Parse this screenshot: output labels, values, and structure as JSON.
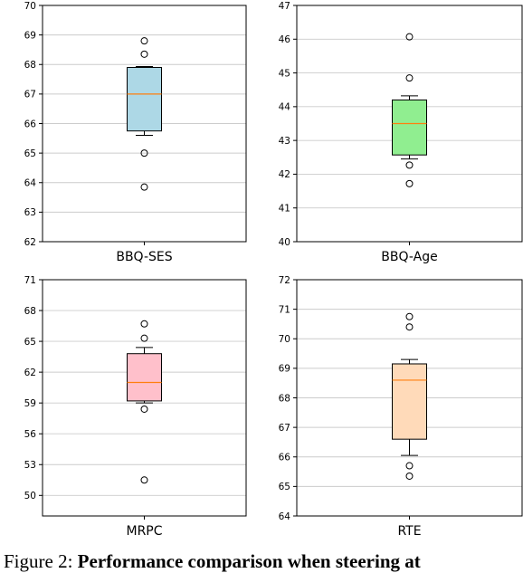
{
  "caption": {
    "lead": "Figure 2:",
    "bold": "Performance comparison when steering at"
  },
  "colors": {
    "grid": "#cccccc",
    "median": "#ff7f0e",
    "axes": "#000000"
  },
  "chart_data": [
    {
      "type": "box",
      "xlabel": "BBQ-SES",
      "ylim": [
        62,
        70
      ],
      "yticks": [
        62,
        63,
        64,
        65,
        66,
        67,
        68,
        69,
        70
      ],
      "grid": true,
      "box": {
        "q1": 65.75,
        "median": 67.0,
        "q3": 67.9,
        "whisker_low": 65.6,
        "whisker_high": 67.93
      },
      "outliers": [
        68.8,
        68.35,
        65.0,
        63.85
      ],
      "fill": "#add8e6"
    },
    {
      "type": "box",
      "xlabel": "BBQ-Age",
      "ylim": [
        40,
        47
      ],
      "yticks": [
        40,
        41,
        42,
        43,
        44,
        45,
        46,
        47
      ],
      "grid": true,
      "box": {
        "q1": 42.57,
        "median": 43.5,
        "q3": 44.2,
        "whisker_low": 42.45,
        "whisker_high": 44.32
      },
      "outliers": [
        46.07,
        44.85,
        42.27,
        41.72
      ],
      "fill": "#90ee90"
    },
    {
      "type": "box",
      "xlabel": "MRPC",
      "ylim": [
        48,
        71
      ],
      "yticks": [
        50,
        53,
        56,
        59,
        62,
        65,
        68,
        71
      ],
      "grid": true,
      "box": {
        "q1": 59.2,
        "median": 61.0,
        "q3": 63.8,
        "whisker_low": 59.0,
        "whisker_high": 64.4
      },
      "outliers": [
        66.7,
        65.3,
        58.4,
        51.5
      ],
      "fill": "#ffc0cb"
    },
    {
      "type": "box",
      "xlabel": "RTE",
      "ylim": [
        64,
        72
      ],
      "yticks": [
        64,
        65,
        66,
        67,
        68,
        69,
        70,
        71,
        72
      ],
      "grid": true,
      "box": {
        "q1": 66.6,
        "median": 68.6,
        "q3": 69.15,
        "whisker_low": 66.05,
        "whisker_high": 69.3
      },
      "outliers": [
        70.75,
        70.4,
        65.7,
        65.35
      ],
      "fill": "#ffdab9"
    }
  ]
}
